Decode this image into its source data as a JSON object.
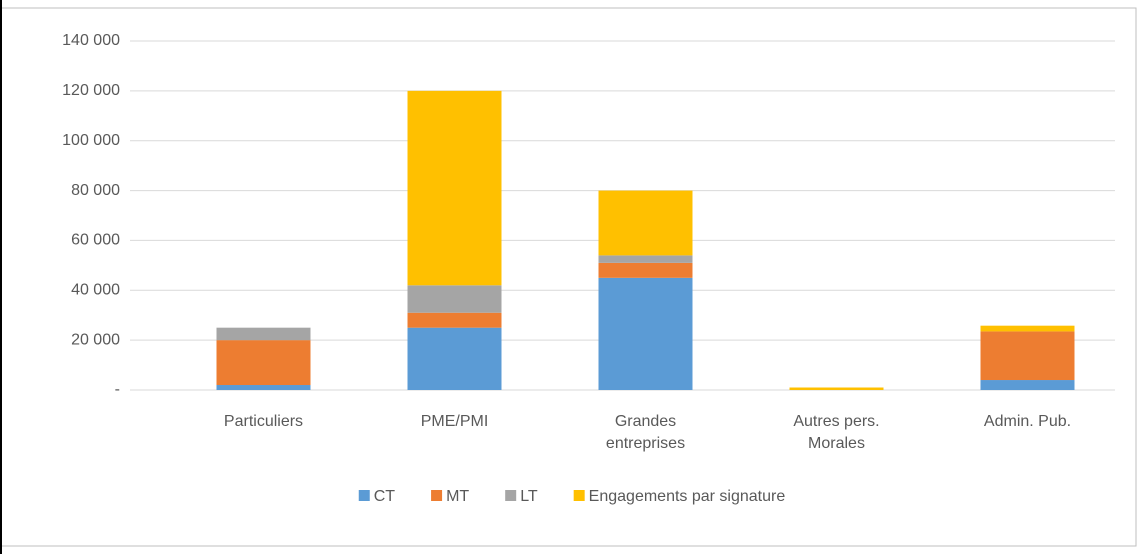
{
  "chart_data": {
    "type": "stacked_bar",
    "categories": [
      "Particuliers",
      "PME/PMI",
      "Grandes entreprises",
      "Autres pers. Morales",
      "Admin. Pub."
    ],
    "series": [
      {
        "name": "CT",
        "color": "#5b9bd5",
        "values": [
          2000,
          25000,
          45000,
          0,
          4000
        ]
      },
      {
        "name": "MT",
        "color": "#ed7d31",
        "values": [
          18000,
          6000,
          6000,
          0,
          19500
        ]
      },
      {
        "name": "LT",
        "color": "#a5a5a5",
        "values": [
          5000,
          11000,
          3000,
          0,
          0
        ]
      },
      {
        "name": "Engagements par signature",
        "color": "#ffc000",
        "values": [
          0,
          78000,
          26000,
          1000,
          2300
        ]
      }
    ],
    "ylim": [
      0,
      140000
    ],
    "yticks": [
      {
        "value": 0,
        "label": "-"
      },
      {
        "value": 20000,
        "label": "20 000"
      },
      {
        "value": 40000,
        "label": "40 000"
      },
      {
        "value": 60000,
        "label": "60 000"
      },
      {
        "value": 80000,
        "label": "80 000"
      },
      {
        "value": 100000,
        "label": "100 000"
      },
      {
        "value": 120000,
        "label": "120 000"
      },
      {
        "value": 140000,
        "label": "140 000"
      }
    ],
    "grid": true,
    "legend": "bottom"
  }
}
